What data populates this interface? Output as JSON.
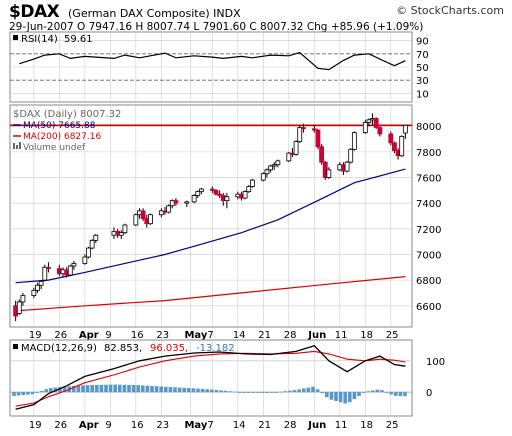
{
  "header": {
    "ticker": "$DAX",
    "company": "(German DAX Composite)",
    "exchange": "INDX",
    "watermark": "© StockCharts.com",
    "date": "29-Jun-2007",
    "open_label": "O",
    "open": "7947.16",
    "high_label": "H",
    "high": "8007.74",
    "low_label": "L",
    "low": "7901.60",
    "close_label": "C",
    "close": "8007.32",
    "chg_label": "Chg",
    "chg": "+85.96 (+1.09%)"
  },
  "rsi_panel": {
    "label": "RSI(14)",
    "value": "59.61",
    "ticks": [
      "90",
      "70",
      "50",
      "30",
      "10"
    ]
  },
  "price_panel": {
    "legend_main": "$DAX (Daily) 8007.32",
    "legend_ma50": "MA(50) 7665.88",
    "legend_ma200": "MA(200) 6827.16",
    "legend_volume": "Volume undef",
    "ticks": [
      "8000",
      "7800",
      "7600",
      "7400",
      "7200",
      "7000",
      "6800",
      "6600"
    ]
  },
  "macd_panel": {
    "label": "MACD(12,26,9)",
    "macd": "82.853,",
    "signal": "96.035,",
    "hist": "-13.182",
    "ticks": [
      "100",
      "0"
    ]
  },
  "x_axis": {
    "labels": [
      "19",
      "26",
      "Apr",
      "9",
      "16",
      "23",
      "May",
      "7",
      "14",
      "21",
      "28",
      "Jun",
      "11",
      "18",
      "25"
    ],
    "bold_labels": [
      "Apr",
      "May",
      "Jun"
    ]
  },
  "colors": {
    "up_candle": "#ffffff",
    "down_candle": "#cc0033",
    "ma50": "#000088",
    "ma200": "#dd0000",
    "close_line": "#cc0000",
    "hist": "#5599cc",
    "grid": "#cccccc"
  },
  "chart_data": [
    {
      "type": "line",
      "name": "RSI(14)",
      "ylim": [
        0,
        100
      ],
      "x": [
        "2007-03-15",
        "2007-03-19",
        "2007-03-22",
        "2007-03-26",
        "2007-03-29",
        "2007-04-02",
        "2007-04-05",
        "2007-04-10",
        "2007-04-13",
        "2007-04-17",
        "2007-04-20",
        "2007-04-24",
        "2007-04-27",
        "2007-05-02",
        "2007-05-07",
        "2007-05-10",
        "2007-05-15",
        "2007-05-18",
        "2007-05-23",
        "2007-05-28",
        "2007-05-31",
        "2007-06-05",
        "2007-06-08",
        "2007-06-12",
        "2007-06-15",
        "2007-06-19",
        "2007-06-22",
        "2007-06-26",
        "2007-06-29"
      ],
      "values": [
        55,
        62,
        68,
        70,
        63,
        66,
        65,
        63,
        68,
        64,
        67,
        71,
        64,
        67,
        65,
        63,
        66,
        64,
        68,
        67,
        72,
        48,
        46,
        60,
        68,
        70,
        62,
        52,
        59.61
      ]
    },
    {
      "type": "candlestick",
      "name": "$DAX (Daily)",
      "ylim": [
        6450,
        8150
      ],
      "reference_line": 8007.32,
      "series": [
        {
          "name": "MA(50)",
          "x": [
            "2007-03-14",
            "2007-03-23",
            "2007-04-02",
            "2007-04-13",
            "2007-04-24",
            "2007-05-04",
            "2007-05-15",
            "2007-05-25",
            "2007-06-05",
            "2007-06-15",
            "2007-06-29"
          ],
          "values": [
            6780,
            6800,
            6860,
            6930,
            7000,
            7080,
            7170,
            7270,
            7420,
            7560,
            7665.88
          ]
        },
        {
          "name": "MA(200)",
          "x": [
            "2007-03-14",
            "2007-04-02",
            "2007-04-24",
            "2007-05-15",
            "2007-06-05",
            "2007-06-29"
          ],
          "values": [
            6560,
            6600,
            6640,
            6700,
            6760,
            6827.16
          ]
        }
      ],
      "candles": [
        {
          "x": "2007-03-14",
          "o": 6600,
          "h": 6640,
          "l": 6480,
          "c": 6520
        },
        {
          "x": "2007-03-15",
          "o": 6540,
          "h": 6650,
          "l": 6530,
          "c": 6630
        },
        {
          "x": "2007-03-16",
          "o": 6630,
          "h": 6700,
          "l": 6600,
          "c": 6680
        },
        {
          "x": "2007-03-19",
          "o": 6680,
          "h": 6740,
          "l": 6660,
          "c": 6720
        },
        {
          "x": "2007-03-20",
          "o": 6720,
          "h": 6780,
          "l": 6700,
          "c": 6760
        },
        {
          "x": "2007-03-21",
          "o": 6760,
          "h": 6800,
          "l": 6730,
          "c": 6790
        },
        {
          "x": "2007-03-22",
          "o": 6800,
          "h": 6920,
          "l": 6790,
          "c": 6900
        },
        {
          "x": "2007-03-23",
          "o": 6900,
          "h": 6940,
          "l": 6860,
          "c": 6890
        },
        {
          "x": "2007-03-26",
          "o": 6890,
          "h": 6920,
          "l": 6830,
          "c": 6850
        },
        {
          "x": "2007-03-27",
          "o": 6850,
          "h": 6900,
          "l": 6820,
          "c": 6880
        },
        {
          "x": "2007-03-28",
          "o": 6880,
          "h": 6900,
          "l": 6820,
          "c": 6840
        },
        {
          "x": "2007-03-29",
          "o": 6840,
          "h": 6920,
          "l": 6830,
          "c": 6910
        },
        {
          "x": "2007-03-30",
          "o": 6910,
          "h": 6950,
          "l": 6880,
          "c": 6930
        },
        {
          "x": "2007-04-02",
          "o": 6930,
          "h": 7000,
          "l": 6920,
          "c": 6980
        },
        {
          "x": "2007-04-03",
          "o": 6980,
          "h": 7060,
          "l": 6970,
          "c": 7050
        },
        {
          "x": "2007-04-04",
          "o": 7050,
          "h": 7120,
          "l": 7040,
          "c": 7110
        },
        {
          "x": "2007-04-05",
          "o": 7110,
          "h": 7160,
          "l": 7090,
          "c": 7150
        },
        {
          "x": "2007-04-10",
          "o": 7150,
          "h": 7210,
          "l": 7120,
          "c": 7180
        },
        {
          "x": "2007-04-11",
          "o": 7180,
          "h": 7200,
          "l": 7130,
          "c": 7150
        },
        {
          "x": "2007-04-12",
          "o": 7150,
          "h": 7190,
          "l": 7120,
          "c": 7170
        },
        {
          "x": "2007-04-13",
          "o": 7170,
          "h": 7240,
          "l": 7160,
          "c": 7230
        },
        {
          "x": "2007-04-16",
          "o": 7230,
          "h": 7320,
          "l": 7220,
          "c": 7310
        },
        {
          "x": "2007-04-17",
          "o": 7310,
          "h": 7360,
          "l": 7280,
          "c": 7340
        },
        {
          "x": "2007-04-18",
          "o": 7340,
          "h": 7360,
          "l": 7260,
          "c": 7280
        },
        {
          "x": "2007-04-19",
          "o": 7280,
          "h": 7310,
          "l": 7210,
          "c": 7240
        },
        {
          "x": "2007-04-20",
          "o": 7240,
          "h": 7320,
          "l": 7230,
          "c": 7310
        },
        {
          "x": "2007-04-23",
          "o": 7310,
          "h": 7360,
          "l": 7290,
          "c": 7340
        },
        {
          "x": "2007-04-24",
          "o": 7340,
          "h": 7370,
          "l": 7310,
          "c": 7330
        },
        {
          "x": "2007-04-25",
          "o": 7330,
          "h": 7390,
          "l": 7320,
          "c": 7380
        },
        {
          "x": "2007-04-26",
          "o": 7380,
          "h": 7430,
          "l": 7360,
          "c": 7420
        },
        {
          "x": "2007-04-27",
          "o": 7420,
          "h": 7440,
          "l": 7380,
          "c": 7400
        },
        {
          "x": "2007-04-30",
          "o": 7400,
          "h": 7420,
          "l": 7370,
          "c": 7410
        },
        {
          "x": "2007-05-02",
          "o": 7410,
          "h": 7470,
          "l": 7400,
          "c": 7460
        },
        {
          "x": "2007-05-03",
          "o": 7460,
          "h": 7500,
          "l": 7440,
          "c": 7490
        },
        {
          "x": "2007-05-04",
          "o": 7490,
          "h": 7520,
          "l": 7470,
          "c": 7510
        },
        {
          "x": "2007-05-07",
          "o": 7510,
          "h": 7530,
          "l": 7480,
          "c": 7500
        },
        {
          "x": "2007-05-08",
          "o": 7500,
          "h": 7510,
          "l": 7460,
          "c": 7470
        },
        {
          "x": "2007-05-09",
          "o": 7470,
          "h": 7500,
          "l": 7440,
          "c": 7460
        },
        {
          "x": "2007-05-10",
          "o": 7460,
          "h": 7480,
          "l": 7380,
          "c": 7420
        },
        {
          "x": "2007-05-11",
          "o": 7420,
          "h": 7480,
          "l": 7360,
          "c": 7450
        },
        {
          "x": "2007-05-14",
          "o": 7450,
          "h": 7490,
          "l": 7430,
          "c": 7470
        },
        {
          "x": "2007-05-15",
          "o": 7470,
          "h": 7490,
          "l": 7420,
          "c": 7440
        },
        {
          "x": "2007-05-16",
          "o": 7440,
          "h": 7500,
          "l": 7430,
          "c": 7490
        },
        {
          "x": "2007-05-17",
          "o": 7490,
          "h": 7540,
          "l": 7480,
          "c": 7530
        },
        {
          "x": "2007-05-18",
          "o": 7530,
          "h": 7590,
          "l": 7520,
          "c": 7580
        },
        {
          "x": "2007-05-21",
          "o": 7580,
          "h": 7640,
          "l": 7570,
          "c": 7630
        },
        {
          "x": "2007-05-22",
          "o": 7630,
          "h": 7670,
          "l": 7600,
          "c": 7660
        },
        {
          "x": "2007-05-23",
          "o": 7660,
          "h": 7700,
          "l": 7640,
          "c": 7690
        },
        {
          "x": "2007-05-24",
          "o": 7690,
          "h": 7720,
          "l": 7660,
          "c": 7700
        },
        {
          "x": "2007-05-25",
          "o": 7700,
          "h": 7740,
          "l": 7680,
          "c": 7730
        },
        {
          "x": "2007-05-28",
          "o": 7730,
          "h": 7800,
          "l": 7720,
          "c": 7790
        },
        {
          "x": "2007-05-29",
          "o": 7790,
          "h": 7830,
          "l": 7760,
          "c": 7780
        },
        {
          "x": "2007-05-30",
          "o": 7780,
          "h": 7890,
          "l": 7770,
          "c": 7880
        },
        {
          "x": "2007-05-31",
          "o": 7880,
          "h": 8010,
          "l": 7870,
          "c": 7990
        },
        {
          "x": "2007-06-01",
          "o": 7990,
          "h": 8020,
          "l": 7950,
          "c": 7980
        },
        {
          "x": "2007-06-04",
          "o": 7980,
          "h": 8010,
          "l": 7950,
          "c": 7970
        },
        {
          "x": "2007-06-05",
          "o": 7970,
          "h": 7980,
          "l": 7820,
          "c": 7840
        },
        {
          "x": "2007-06-06",
          "o": 7840,
          "h": 7860,
          "l": 7700,
          "c": 7720
        },
        {
          "x": "2007-06-07",
          "o": 7720,
          "h": 7730,
          "l": 7580,
          "c": 7600
        },
        {
          "x": "2007-06-08",
          "o": 7600,
          "h": 7680,
          "l": 7590,
          "c": 7660
        },
        {
          "x": "2007-06-11",
          "o": 7660,
          "h": 7720,
          "l": 7650,
          "c": 7700
        },
        {
          "x": "2007-06-12",
          "o": 7700,
          "h": 7720,
          "l": 7620,
          "c": 7650
        },
        {
          "x": "2007-06-13",
          "o": 7650,
          "h": 7730,
          "l": 7640,
          "c": 7720
        },
        {
          "x": "2007-06-14",
          "o": 7720,
          "h": 7830,
          "l": 7710,
          "c": 7820
        },
        {
          "x": "2007-06-15",
          "o": 7820,
          "h": 7960,
          "l": 7810,
          "c": 7950
        },
        {
          "x": "2007-06-18",
          "o": 7950,
          "h": 8050,
          "l": 7940,
          "c": 8030
        },
        {
          "x": "2007-06-19",
          "o": 8030,
          "h": 8060,
          "l": 8000,
          "c": 8050
        },
        {
          "x": "2007-06-20",
          "o": 8050,
          "h": 8100,
          "l": 8010,
          "c": 8060
        },
        {
          "x": "2007-06-21",
          "o": 8060,
          "h": 8070,
          "l": 7980,
          "c": 7990
        },
        {
          "x": "2007-06-22",
          "o": 7990,
          "h": 8000,
          "l": 7920,
          "c": 7940
        },
        {
          "x": "2007-06-25",
          "o": 7940,
          "h": 7960,
          "l": 7850,
          "c": 7870
        },
        {
          "x": "2007-06-26",
          "o": 7870,
          "h": 7880,
          "l": 7790,
          "c": 7810
        },
        {
          "x": "2007-06-27",
          "o": 7810,
          "h": 7830,
          "l": 7740,
          "c": 7770
        },
        {
          "x": "2007-06-28",
          "o": 7770,
          "h": 7930,
          "l": 7760,
          "c": 7920
        },
        {
          "x": "2007-06-29",
          "o": 7947.16,
          "h": 8007.74,
          "l": 7901.6,
          "c": 8007.32
        }
      ]
    },
    {
      "type": "line",
      "name": "MACD(12,26,9)",
      "ylim": [
        -70,
        160
      ],
      "x": [
        "2007-03-14",
        "2007-03-19",
        "2007-03-23",
        "2007-03-28",
        "2007-04-02",
        "2007-04-10",
        "2007-04-17",
        "2007-04-24",
        "2007-05-02",
        "2007-05-09",
        "2007-05-16",
        "2007-05-23",
        "2007-05-30",
        "2007-06-04",
        "2007-06-08",
        "2007-06-13",
        "2007-06-18",
        "2007-06-22",
        "2007-06-26",
        "2007-06-29"
      ],
      "series": [
        {
          "name": "MACD",
          "values": [
            -55,
            -40,
            -5,
            20,
            50,
            75,
            100,
            115,
            125,
            128,
            122,
            120,
            130,
            148,
            100,
            65,
            100,
            115,
            88,
            82.853
          ]
        },
        {
          "name": "Signal",
          "values": [
            -45,
            -35,
            -15,
            5,
            30,
            55,
            80,
            100,
            115,
            122,
            124,
            122,
            124,
            130,
            122,
            105,
            100,
            105,
            102,
            96.035
          ]
        },
        {
          "name": "Histogram",
          "type": "bar",
          "values": [
            -12,
            -6,
            12,
            18,
            22,
            24,
            22,
            17,
            12,
            6,
            -2,
            -3,
            7,
            18,
            -22,
            -38,
            1,
            9,
            -12,
            -13.182
          ]
        }
      ]
    }
  ]
}
